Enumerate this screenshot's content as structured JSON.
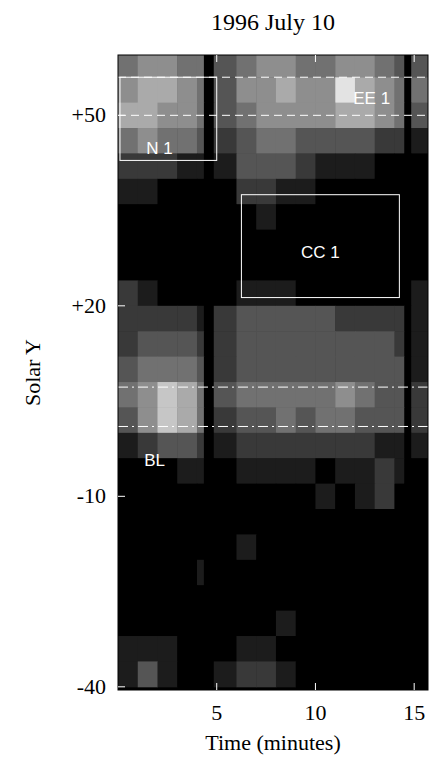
{
  "chart_data": {
    "type": "heatmap",
    "title": "1996 July 10",
    "x_label": "Time (minutes)",
    "y_label": "Solar Y",
    "xlim": [
      0,
      15.7
    ],
    "ylim": [
      -40.5,
      59.5
    ],
    "xticks": [
      5,
      10,
      15
    ],
    "yticks": [
      {
        "value": 50,
        "label": "+50"
      },
      {
        "value": 20,
        "label": "+20"
      },
      -10,
      -40
    ],
    "x_edges": [
      0,
      1,
      2,
      3,
      4,
      4.35,
      4.85,
      6,
      7,
      8,
      9,
      10,
      11,
      12,
      13,
      14,
      14.5,
      14.85,
      15.7
    ],
    "y_edges": [
      60,
      56,
      52,
      48,
      44,
      40,
      36,
      32,
      28,
      24,
      20,
      16,
      12,
      8,
      4,
      0,
      -4,
      -8,
      -12,
      -16,
      -20,
      -24,
      -28,
      -32,
      -36,
      -40
    ],
    "zlim": [
      0,
      9
    ],
    "cells": [
      [
        4,
        5,
        5,
        4,
        4,
        0,
        3,
        4,
        5,
        5,
        4,
        4,
        5,
        5,
        4,
        3,
        0,
        3
      ],
      [
        5,
        6,
        6,
        5,
        4,
        0,
        3,
        5,
        5,
        6,
        5,
        5,
        8,
        6,
        5,
        4,
        0,
        4
      ],
      [
        6,
        6,
        5,
        5,
        4,
        0,
        3,
        4,
        5,
        5,
        5,
        5,
        6,
        6,
        5,
        4,
        0,
        3
      ],
      [
        4,
        5,
        4,
        4,
        3,
        0,
        2,
        3,
        4,
        4,
        3,
        3,
        3,
        3,
        2,
        2,
        0,
        1
      ],
      [
        2,
        2,
        2,
        1,
        1,
        0,
        1,
        3,
        3,
        3,
        2,
        1,
        1,
        1,
        0,
        0,
        0,
        0
      ],
      [
        1,
        1,
        0,
        0,
        0,
        0,
        0,
        2,
        2,
        1,
        1,
        0,
        0,
        0,
        0,
        0,
        0,
        0
      ],
      [
        0,
        0,
        0,
        0,
        0,
        0,
        0,
        0,
        1,
        0,
        0,
        0,
        0,
        0,
        0,
        0,
        0,
        0
      ],
      [
        0,
        0,
        0,
        0,
        0,
        0,
        0,
        0,
        0,
        0,
        0,
        0,
        0,
        0,
        0,
        0,
        0,
        0
      ],
      [
        0,
        0,
        0,
        0,
        0,
        0,
        0,
        0,
        0,
        0,
        0,
        0,
        0,
        0,
        0,
        0,
        0,
        0
      ],
      [
        2,
        1,
        0,
        0,
        0,
        0,
        0,
        1,
        1,
        1,
        0,
        0,
        0,
        0,
        0,
        0,
        0,
        1
      ],
      [
        2,
        2,
        2,
        2,
        1,
        0,
        2,
        3,
        3,
        3,
        3,
        3,
        2,
        2,
        2,
        2,
        0,
        1
      ],
      [
        2,
        3,
        3,
        3,
        2,
        0,
        2,
        3,
        3,
        3,
        3,
        3,
        3,
        3,
        3,
        2,
        0,
        1
      ],
      [
        3,
        4,
        4,
        4,
        3,
        0,
        2,
        3,
        3,
        3,
        3,
        3,
        3,
        3,
        3,
        3,
        0,
        1
      ],
      [
        4,
        5,
        7,
        6,
        4,
        0,
        3,
        4,
        4,
        4,
        4,
        4,
        5,
        4,
        3,
        3,
        0,
        2
      ],
      [
        3,
        5,
        7,
        6,
        4,
        0,
        2,
        3,
        3,
        4,
        3,
        4,
        4,
        3,
        3,
        3,
        0,
        2
      ],
      [
        1,
        2,
        3,
        3,
        2,
        0,
        1,
        2,
        2,
        2,
        2,
        2,
        2,
        2,
        1,
        1,
        0,
        1
      ],
      [
        0,
        0,
        0,
        1,
        1,
        0,
        0,
        1,
        1,
        1,
        1,
        0,
        1,
        1,
        2,
        1,
        0,
        0
      ],
      [
        0,
        0,
        0,
        0,
        0,
        0,
        0,
        0,
        0,
        0,
        0,
        1,
        0,
        1,
        2,
        0,
        0,
        0
      ],
      [
        0,
        0,
        0,
        0,
        0,
        0,
        0,
        0,
        0,
        0,
        0,
        0,
        0,
        0,
        0,
        0,
        0,
        0
      ],
      [
        0,
        0,
        0,
        0,
        0,
        0,
        0,
        1,
        0,
        0,
        0,
        0,
        0,
        0,
        0,
        0,
        0,
        0
      ],
      [
        0,
        0,
        0,
        0,
        1,
        0,
        0,
        0,
        0,
        0,
        0,
        0,
        0,
        0,
        0,
        0,
        0,
        0
      ],
      [
        0,
        0,
        0,
        0,
        0,
        0,
        0,
        0,
        0,
        0,
        0,
        0,
        0,
        0,
        0,
        0,
        0,
        0
      ],
      [
        0,
        0,
        0,
        0,
        0,
        0,
        0,
        0,
        0,
        1,
        0,
        0,
        0,
        0,
        0,
        0,
        0,
        0
      ],
      [
        1,
        1,
        1,
        0,
        0,
        0,
        0,
        1,
        1,
        0,
        0,
        0,
        0,
        0,
        0,
        0,
        0,
        0
      ],
      [
        1,
        3,
        1,
        0,
        0,
        0,
        1,
        2,
        2,
        1,
        0,
        0,
        0,
        0,
        0,
        0,
        0,
        0
      ]
    ],
    "boxes": [
      {
        "x": [
          0.1,
          5
        ],
        "y": [
          42.9,
          56
        ]
      },
      {
        "x": [
          6.25,
          14.25
        ],
        "y": [
          21.3,
          37.5
        ]
      }
    ],
    "lines": [
      {
        "y": 56,
        "line_style": "dashed"
      },
      {
        "y": 50,
        "line_style": "dashed"
      },
      {
        "y": 7.2,
        "line_style": "dashdot"
      },
      {
        "y": 1.0,
        "line_style": "dashdot"
      }
    ],
    "labels": [
      {
        "text": "N 1",
        "x": 2.1,
        "y": 44.9
      },
      {
        "text": "EE 1",
        "x": 12.85,
        "y": 52.8
      },
      {
        "text": "CC 1",
        "x": 10.25,
        "y": 28.4
      },
      {
        "text": "BL",
        "x": 1.85,
        "y": -4.3
      }
    ]
  }
}
